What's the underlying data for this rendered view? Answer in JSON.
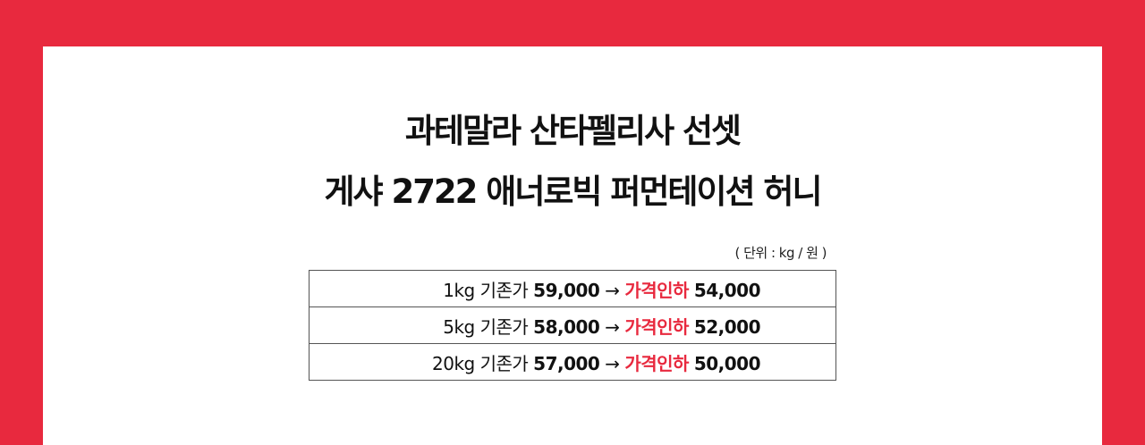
{
  "colors": {
    "background": "#e8293e",
    "accent": "#e8293e"
  },
  "title": {
    "line1": "과테말라 산타펠리사 선셋",
    "line2": "게샤 2722 애너로빅 퍼먼테이션 허니"
  },
  "unit_note": "( 단위 : kg / 원 )",
  "arrow": "→",
  "rows": [
    {
      "weight": "1kg",
      "base_label": "기존가",
      "base_price": "59,000",
      "sale_label": "가격인하",
      "sale_price": "54,000"
    },
    {
      "weight": "5kg",
      "base_label": "기존가",
      "base_price": "58,000",
      "sale_label": "가격인하",
      "sale_price": "52,000"
    },
    {
      "weight": "20kg",
      "base_label": "기존가",
      "base_price": "57,000",
      "sale_label": "가격인하",
      "sale_price": "50,000"
    }
  ]
}
